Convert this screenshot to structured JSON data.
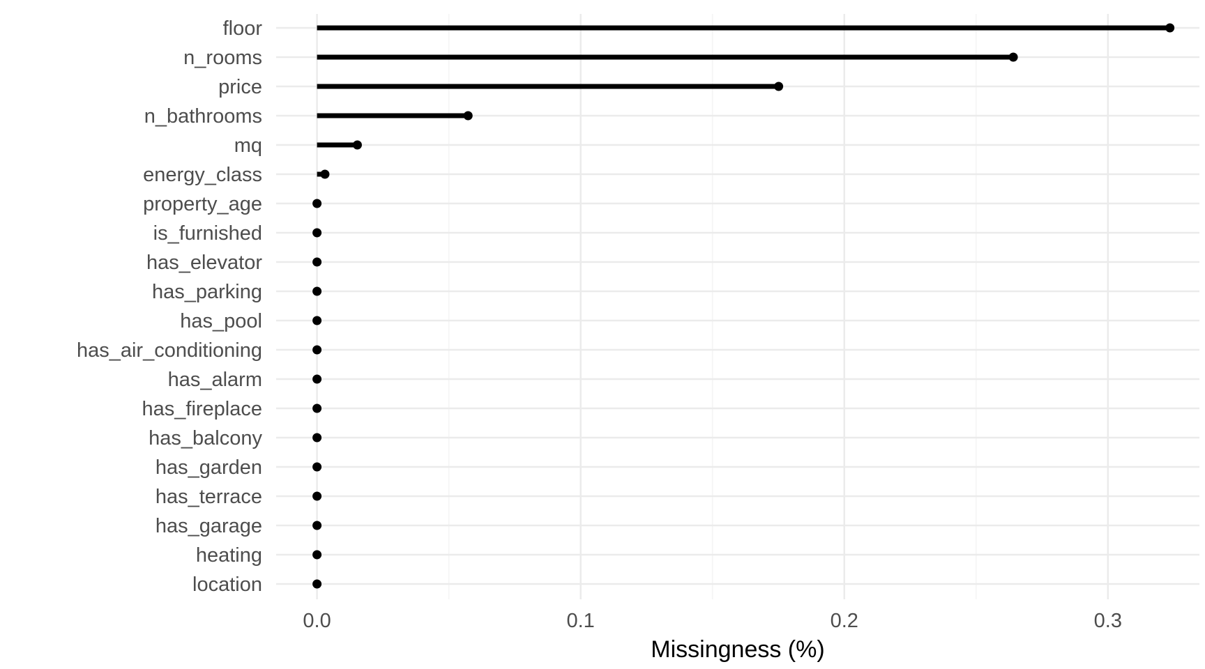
{
  "chart_data": {
    "type": "lollipop",
    "title": "",
    "xlabel": "Missingness (%)",
    "ylabel": "",
    "xlim": [
      -0.0155,
      0.3347
    ],
    "x_ticks": [
      0.0,
      0.1,
      0.2,
      0.3
    ],
    "x_tick_labels": [
      "0.0",
      "0.1",
      "0.2",
      "0.3"
    ],
    "grid": true,
    "categories": [
      "floor",
      "n_rooms",
      "price",
      "n_bathrooms",
      "mq",
      "energy_class",
      "property_age",
      "is_furnished",
      "has_elevator",
      "has_parking",
      "has_pool",
      "has_air_conditioning",
      "has_alarm",
      "has_fireplace",
      "has_balcony",
      "has_garden",
      "has_terrace",
      "has_garage",
      "heating",
      "location"
    ],
    "values": [
      0.3235,
      0.2641,
      0.1751,
      0.0573,
      0.0153,
      0.003,
      0,
      0,
      0,
      0,
      0,
      0,
      0,
      0,
      0,
      0,
      0,
      0,
      0,
      0
    ],
    "colors": {
      "mark": "#000000",
      "grid_major": "#ebebeb",
      "grid_minor": "#f4f4f4",
      "text": "#4d4d4d"
    }
  }
}
